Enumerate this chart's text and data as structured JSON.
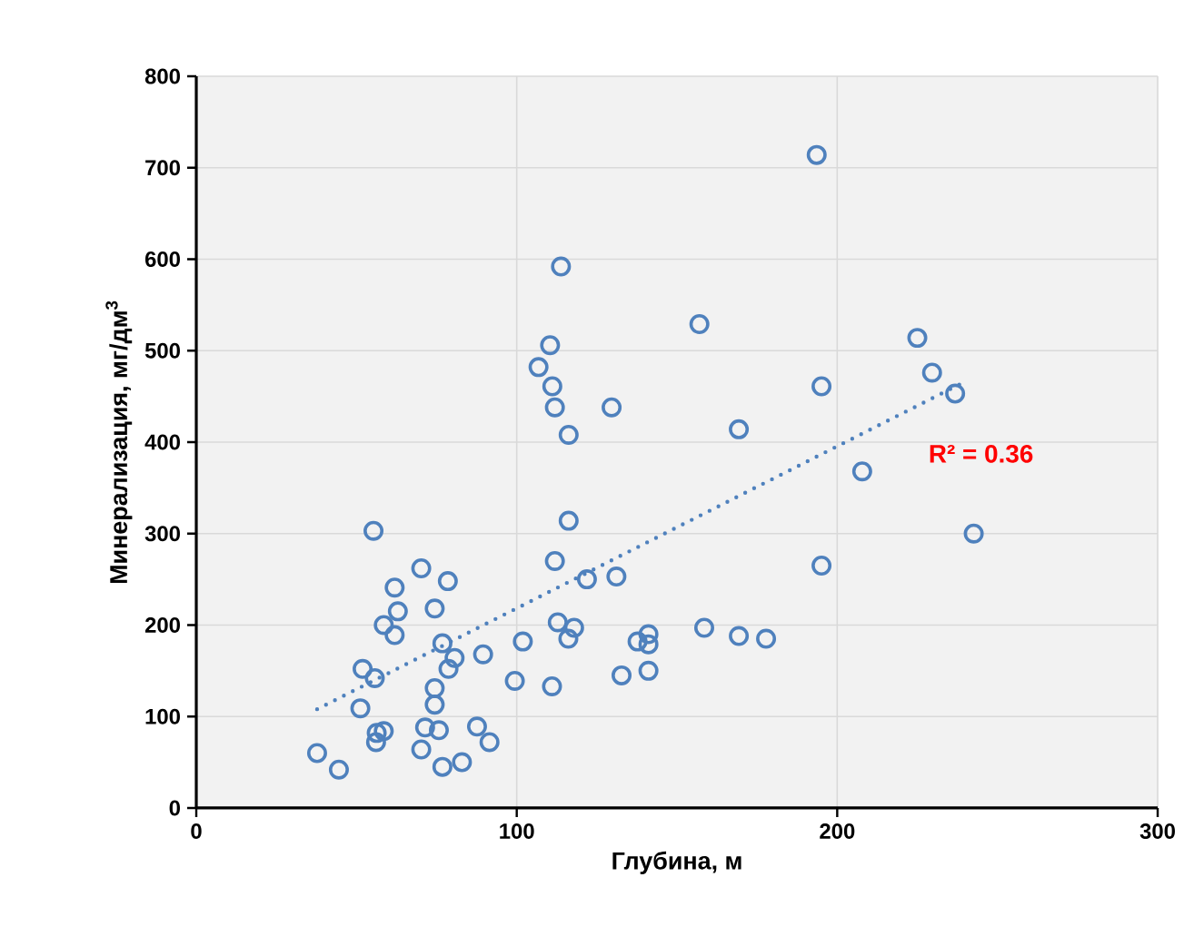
{
  "chart_data": {
    "type": "scatter",
    "xlabel": "Глубина, м",
    "ylabel": "Минерализация, мг/дм$^{3}$",
    "xlim": [
      0,
      300
    ],
    "ylim": [
      0,
      800
    ],
    "xticks": [
      0,
      100,
      200,
      300
    ],
    "yticks": [
      0,
      100,
      200,
      300,
      400,
      500,
      600,
      700,
      800
    ],
    "grid": true,
    "marker": "circle",
    "annotations": [
      "R² = 0.36"
    ],
    "series": [
      {
        "color": "#4f81bd",
        "x": [
          193.6,
          113.8,
          157,
          225,
          110.4,
          106.8,
          229.6,
          195.1,
          111.1,
          236.8,
          111.9,
          129.6,
          169.3,
          116.2,
          207.8,
          242.6,
          116.2,
          111.9,
          195.1,
          121.9,
          131.1,
          112.8,
          117.9,
          116.1,
          158.5,
          169.3,
          177.8,
          137.7,
          141.1,
          141.1,
          101.9,
          89.5,
          99.4,
          111,
          132.7,
          141.1,
          55.3,
          70.2,
          78.5,
          61.9,
          74.4,
          62.9,
          58.5,
          61.9,
          76.8,
          80.6,
          78.7,
          51.9,
          55.7,
          74.4,
          74.4,
          51.2,
          71.4,
          75.7,
          58.5,
          56.3,
          87.6,
          91.5,
          56.1,
          70.2,
          82.9,
          76.8,
          37.7,
          44.5
        ],
        "values": [
          714,
          592,
          529,
          514,
          506,
          482,
          476,
          461,
          461,
          453,
          438,
          438,
          414,
          408,
          368,
          300,
          314,
          270,
          265,
          250,
          253,
          203,
          197,
          185,
          197,
          188,
          185,
          182,
          190,
          179,
          182,
          168,
          139,
          133,
          145,
          150,
          303,
          262,
          248,
          241,
          218,
          215,
          200,
          189,
          180,
          164,
          152,
          152,
          142,
          131,
          113,
          109,
          88,
          85,
          84,
          82,
          89,
          72,
          72,
          64,
          50,
          45,
          60,
          42
        ]
      },
      {
        "type": "line",
        "line_style": "dotted",
        "marker": "none",
        "color": "#4f81bd",
        "x": [
          37.7,
          238.7
        ],
        "values": [
          108,
          464
        ]
      }
    ]
  }
}
